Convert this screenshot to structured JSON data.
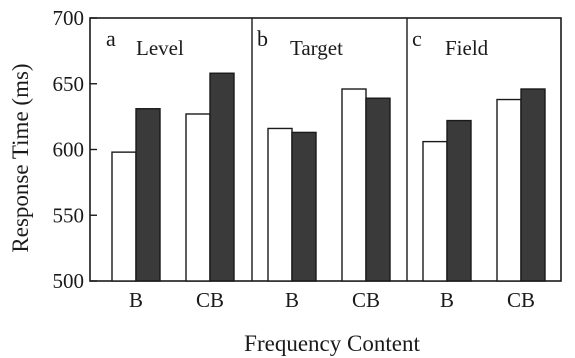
{
  "chart_data": {
    "type": "bar",
    "ylabel": "Response Time (ms)",
    "xlabel": "Frequency Content",
    "ylim": [
      500,
      700
    ],
    "yticks": [
      "500",
      "550",
      "600",
      "650",
      "700"
    ],
    "grid": false,
    "series_colors": [
      "#ffffff",
      "#3a3a3a"
    ],
    "panels": [
      {
        "letter": "a",
        "title": "Level",
        "categories": [
          "B",
          "CB"
        ],
        "series": [
          {
            "values": [
              598,
              627
            ]
          },
          {
            "values": [
              631,
              658
            ]
          }
        ]
      },
      {
        "letter": "b",
        "title": "Target",
        "categories": [
          "B",
          "CB"
        ],
        "series": [
          {
            "values": [
              616,
              646
            ]
          },
          {
            "values": [
              613,
              639
            ]
          }
        ]
      },
      {
        "letter": "c",
        "title": "Field",
        "categories": [
          "B",
          "CB"
        ],
        "series": [
          {
            "values": [
              606,
              638
            ]
          },
          {
            "values": [
              622,
              646
            ]
          }
        ]
      }
    ]
  }
}
